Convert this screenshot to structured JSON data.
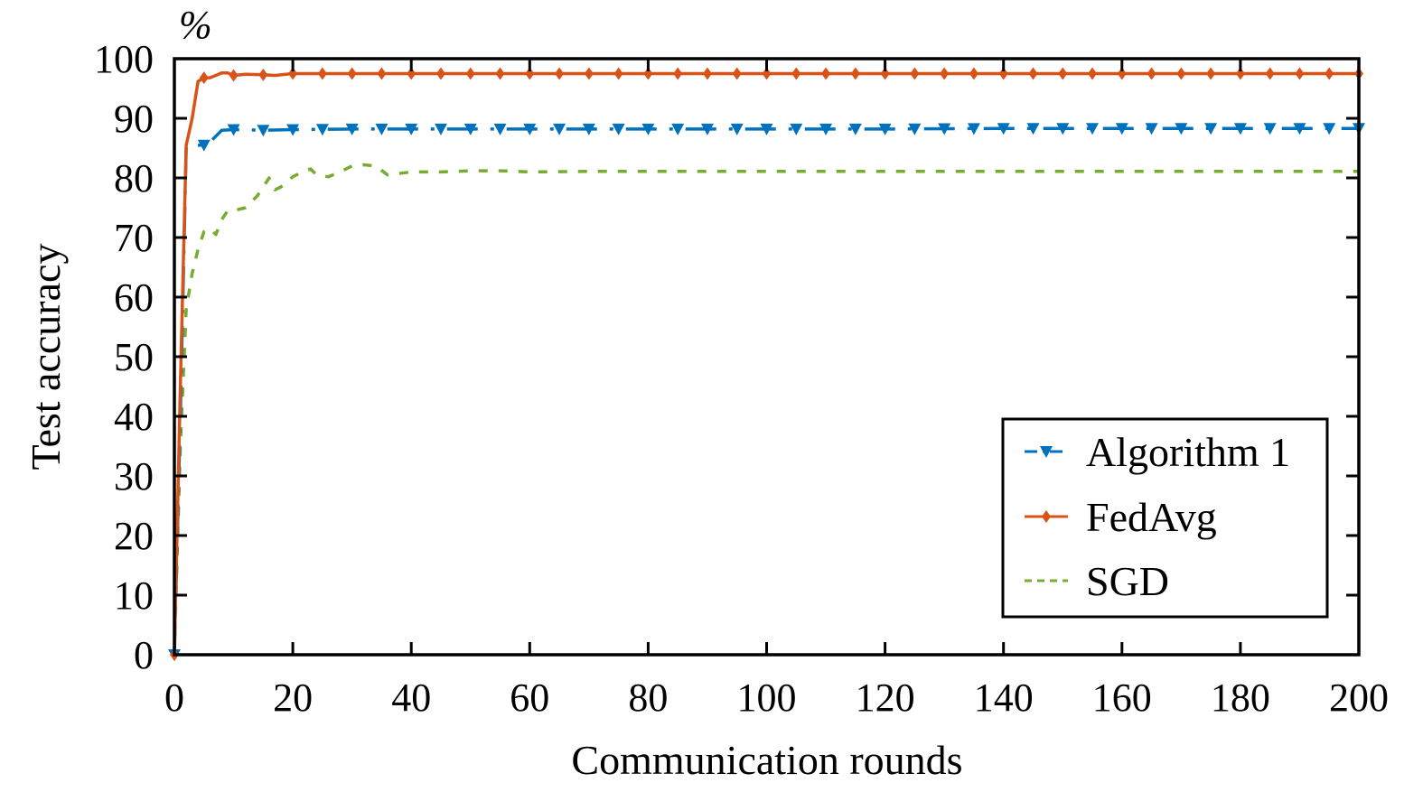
{
  "chart_data": {
    "type": "line",
    "title": "",
    "unit_label": "%",
    "xlabel": "Communication rounds",
    "ylabel": "Test accuracy",
    "xlim": [
      0,
      200
    ],
    "ylim": [
      0,
      100
    ],
    "xticks": [
      0,
      20,
      40,
      60,
      80,
      100,
      120,
      140,
      160,
      180,
      200
    ],
    "yticks": [
      0,
      10,
      20,
      30,
      40,
      50,
      60,
      70,
      80,
      90,
      100
    ],
    "grid": false,
    "legend_position": "lower right",
    "series": [
      {
        "name": "Algorithm 1",
        "color": "#0072BD",
        "line_style": "dash-dot",
        "marker": "triangle-down",
        "marker_every": 5,
        "x": [
          0,
          1,
          2,
          3,
          4,
          5,
          6,
          7,
          8,
          10,
          15,
          20,
          30,
          40,
          50,
          60,
          80,
          100,
          120,
          140,
          160,
          180,
          200
        ],
        "y": [
          0,
          40,
          85.2,
          85.6,
          85.5,
          85.5,
          86.0,
          87.0,
          88.0,
          88.1,
          88.0,
          88.1,
          88.2,
          88.2,
          88.2,
          88.2,
          88.2,
          88.2,
          88.2,
          88.3,
          88.3,
          88.3,
          88.3
        ]
      },
      {
        "name": "FedAvg",
        "color": "#D95319",
        "line_style": "solid",
        "marker": "diamond",
        "marker_every": 5,
        "x": [
          0,
          1,
          2,
          3,
          4,
          5,
          6,
          7,
          8,
          9,
          10,
          12,
          15,
          17,
          20,
          30,
          40,
          60,
          80,
          100,
          120,
          140,
          160,
          180,
          200
        ],
        "y": [
          0,
          45,
          85.5,
          90,
          96.2,
          96.8,
          96.8,
          97.2,
          97.6,
          97.6,
          97.2,
          97.4,
          97.3,
          97.2,
          97.5,
          97.5,
          97.5,
          97.5,
          97.5,
          97.5,
          97.5,
          97.5,
          97.5,
          97.5,
          97.5
        ]
      },
      {
        "name": "SGD",
        "color": "#77AC30",
        "line_style": "dashed",
        "marker": "none",
        "x": [
          0,
          1,
          2,
          3,
          4,
          5,
          6,
          7,
          8,
          9,
          10,
          12,
          14,
          16,
          17,
          18,
          20,
          22,
          23,
          24,
          26,
          28,
          30,
          32,
          34,
          36,
          40,
          45,
          50,
          55,
          60,
          70,
          80,
          100,
          120,
          140,
          160,
          180,
          200
        ],
        "y": [
          0,
          35,
          58,
          64,
          68,
          71,
          71.5,
          70.5,
          73,
          74.5,
          74.5,
          75,
          77,
          80,
          78,
          78.5,
          80.2,
          81.2,
          81.5,
          80.5,
          80.2,
          81,
          82,
          82.2,
          82,
          80.5,
          81,
          81,
          81.2,
          81.2,
          81,
          81.1,
          81.1,
          81.1,
          81.1,
          81.1,
          81.1,
          81.1,
          81.1
        ]
      }
    ]
  },
  "labels": {
    "unit": "%",
    "xlabel": "Communication rounds",
    "ylabel": "Test accuracy",
    "legend": [
      "Algorithm 1",
      "FedAvg",
      "SGD"
    ]
  }
}
